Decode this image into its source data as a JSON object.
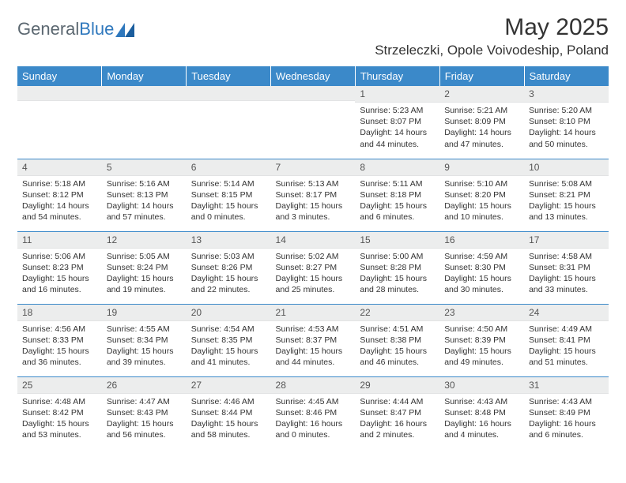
{
  "brand": {
    "part1": "General",
    "part2": "Blue"
  },
  "title": "May 2025",
  "location": "Strzeleczki, Opole Voivodeship, Poland",
  "colors": {
    "header_bg": "#3b89c9",
    "header_text": "#ffffff",
    "daynum_bg": "#eceded",
    "rule": "#3b89c9"
  },
  "day_labels": [
    "Sunday",
    "Monday",
    "Tuesday",
    "Wednesday",
    "Thursday",
    "Friday",
    "Saturday"
  ],
  "weeks": [
    [
      {
        "n": "",
        "sr": "",
        "ss": "",
        "dl": ""
      },
      {
        "n": "",
        "sr": "",
        "ss": "",
        "dl": ""
      },
      {
        "n": "",
        "sr": "",
        "ss": "",
        "dl": ""
      },
      {
        "n": "",
        "sr": "",
        "ss": "",
        "dl": ""
      },
      {
        "n": "1",
        "sr": "Sunrise: 5:23 AM",
        "ss": "Sunset: 8:07 PM",
        "dl": "Daylight: 14 hours and 44 minutes."
      },
      {
        "n": "2",
        "sr": "Sunrise: 5:21 AM",
        "ss": "Sunset: 8:09 PM",
        "dl": "Daylight: 14 hours and 47 minutes."
      },
      {
        "n": "3",
        "sr": "Sunrise: 5:20 AM",
        "ss": "Sunset: 8:10 PM",
        "dl": "Daylight: 14 hours and 50 minutes."
      }
    ],
    [
      {
        "n": "4",
        "sr": "Sunrise: 5:18 AM",
        "ss": "Sunset: 8:12 PM",
        "dl": "Daylight: 14 hours and 54 minutes."
      },
      {
        "n": "5",
        "sr": "Sunrise: 5:16 AM",
        "ss": "Sunset: 8:13 PM",
        "dl": "Daylight: 14 hours and 57 minutes."
      },
      {
        "n": "6",
        "sr": "Sunrise: 5:14 AM",
        "ss": "Sunset: 8:15 PM",
        "dl": "Daylight: 15 hours and 0 minutes."
      },
      {
        "n": "7",
        "sr": "Sunrise: 5:13 AM",
        "ss": "Sunset: 8:17 PM",
        "dl": "Daylight: 15 hours and 3 minutes."
      },
      {
        "n": "8",
        "sr": "Sunrise: 5:11 AM",
        "ss": "Sunset: 8:18 PM",
        "dl": "Daylight: 15 hours and 6 minutes."
      },
      {
        "n": "9",
        "sr": "Sunrise: 5:10 AM",
        "ss": "Sunset: 8:20 PM",
        "dl": "Daylight: 15 hours and 10 minutes."
      },
      {
        "n": "10",
        "sr": "Sunrise: 5:08 AM",
        "ss": "Sunset: 8:21 PM",
        "dl": "Daylight: 15 hours and 13 minutes."
      }
    ],
    [
      {
        "n": "11",
        "sr": "Sunrise: 5:06 AM",
        "ss": "Sunset: 8:23 PM",
        "dl": "Daylight: 15 hours and 16 minutes."
      },
      {
        "n": "12",
        "sr": "Sunrise: 5:05 AM",
        "ss": "Sunset: 8:24 PM",
        "dl": "Daylight: 15 hours and 19 minutes."
      },
      {
        "n": "13",
        "sr": "Sunrise: 5:03 AM",
        "ss": "Sunset: 8:26 PM",
        "dl": "Daylight: 15 hours and 22 minutes."
      },
      {
        "n": "14",
        "sr": "Sunrise: 5:02 AM",
        "ss": "Sunset: 8:27 PM",
        "dl": "Daylight: 15 hours and 25 minutes."
      },
      {
        "n": "15",
        "sr": "Sunrise: 5:00 AM",
        "ss": "Sunset: 8:28 PM",
        "dl": "Daylight: 15 hours and 28 minutes."
      },
      {
        "n": "16",
        "sr": "Sunrise: 4:59 AM",
        "ss": "Sunset: 8:30 PM",
        "dl": "Daylight: 15 hours and 30 minutes."
      },
      {
        "n": "17",
        "sr": "Sunrise: 4:58 AM",
        "ss": "Sunset: 8:31 PM",
        "dl": "Daylight: 15 hours and 33 minutes."
      }
    ],
    [
      {
        "n": "18",
        "sr": "Sunrise: 4:56 AM",
        "ss": "Sunset: 8:33 PM",
        "dl": "Daylight: 15 hours and 36 minutes."
      },
      {
        "n": "19",
        "sr": "Sunrise: 4:55 AM",
        "ss": "Sunset: 8:34 PM",
        "dl": "Daylight: 15 hours and 39 minutes."
      },
      {
        "n": "20",
        "sr": "Sunrise: 4:54 AM",
        "ss": "Sunset: 8:35 PM",
        "dl": "Daylight: 15 hours and 41 minutes."
      },
      {
        "n": "21",
        "sr": "Sunrise: 4:53 AM",
        "ss": "Sunset: 8:37 PM",
        "dl": "Daylight: 15 hours and 44 minutes."
      },
      {
        "n": "22",
        "sr": "Sunrise: 4:51 AM",
        "ss": "Sunset: 8:38 PM",
        "dl": "Daylight: 15 hours and 46 minutes."
      },
      {
        "n": "23",
        "sr": "Sunrise: 4:50 AM",
        "ss": "Sunset: 8:39 PM",
        "dl": "Daylight: 15 hours and 49 minutes."
      },
      {
        "n": "24",
        "sr": "Sunrise: 4:49 AM",
        "ss": "Sunset: 8:41 PM",
        "dl": "Daylight: 15 hours and 51 minutes."
      }
    ],
    [
      {
        "n": "25",
        "sr": "Sunrise: 4:48 AM",
        "ss": "Sunset: 8:42 PM",
        "dl": "Daylight: 15 hours and 53 minutes."
      },
      {
        "n": "26",
        "sr": "Sunrise: 4:47 AM",
        "ss": "Sunset: 8:43 PM",
        "dl": "Daylight: 15 hours and 56 minutes."
      },
      {
        "n": "27",
        "sr": "Sunrise: 4:46 AM",
        "ss": "Sunset: 8:44 PM",
        "dl": "Daylight: 15 hours and 58 minutes."
      },
      {
        "n": "28",
        "sr": "Sunrise: 4:45 AM",
        "ss": "Sunset: 8:46 PM",
        "dl": "Daylight: 16 hours and 0 minutes."
      },
      {
        "n": "29",
        "sr": "Sunrise: 4:44 AM",
        "ss": "Sunset: 8:47 PM",
        "dl": "Daylight: 16 hours and 2 minutes."
      },
      {
        "n": "30",
        "sr": "Sunrise: 4:43 AM",
        "ss": "Sunset: 8:48 PM",
        "dl": "Daylight: 16 hours and 4 minutes."
      },
      {
        "n": "31",
        "sr": "Sunrise: 4:43 AM",
        "ss": "Sunset: 8:49 PM",
        "dl": "Daylight: 16 hours and 6 minutes."
      }
    ]
  ]
}
